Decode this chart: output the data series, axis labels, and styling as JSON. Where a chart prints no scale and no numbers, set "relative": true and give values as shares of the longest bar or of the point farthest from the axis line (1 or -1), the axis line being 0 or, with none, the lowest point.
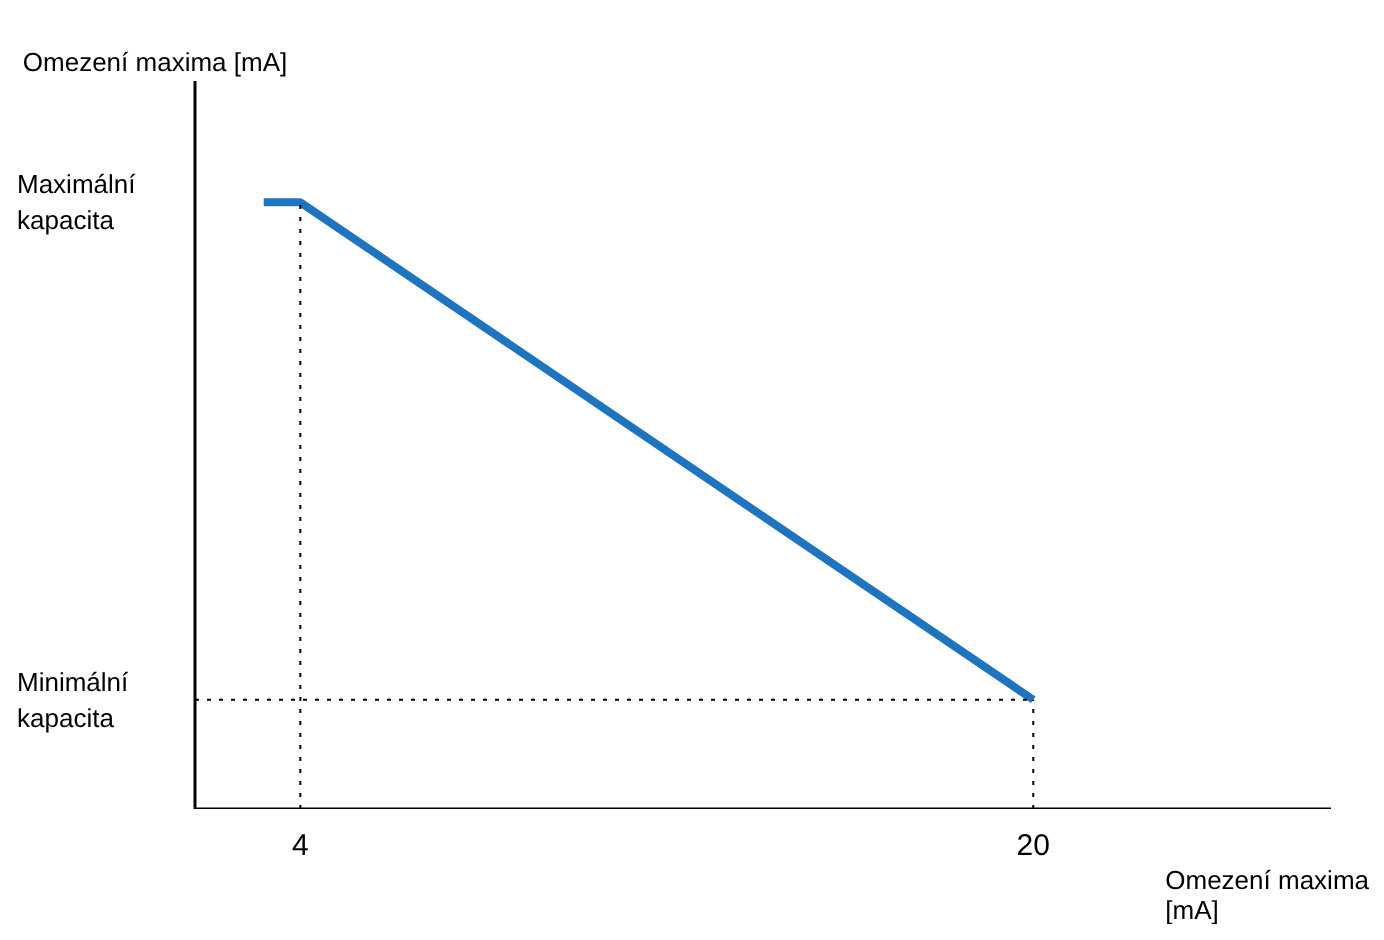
{
  "chart_data": {
    "type": "line",
    "relative": true,
    "ylabel": "Omezení maxima [mA]",
    "xlabel": "Omezení maxima [mA]",
    "x": [
      3.2,
      4,
      20
    ],
    "series": [
      {
        "color": "#1f74bf",
        "values": [
          1,
          1,
          0.18
        ]
      }
    ],
    "xlim": [
      1.7,
      26.5
    ],
    "xticks": [
      4,
      20
    ],
    "annotations": [
      "Maximální kapacita"
    ],
    "ref_lines": [
      {
        "axis": "x",
        "value": 4,
        "line_style": "dotted"
      },
      {
        "axis": "x",
        "value": 20,
        "line_style": "dotted"
      },
      {
        "axis": "y",
        "value": 0.18,
        "line_style": "dotted",
        "label": "Minimální kapacita"
      }
    ]
  }
}
